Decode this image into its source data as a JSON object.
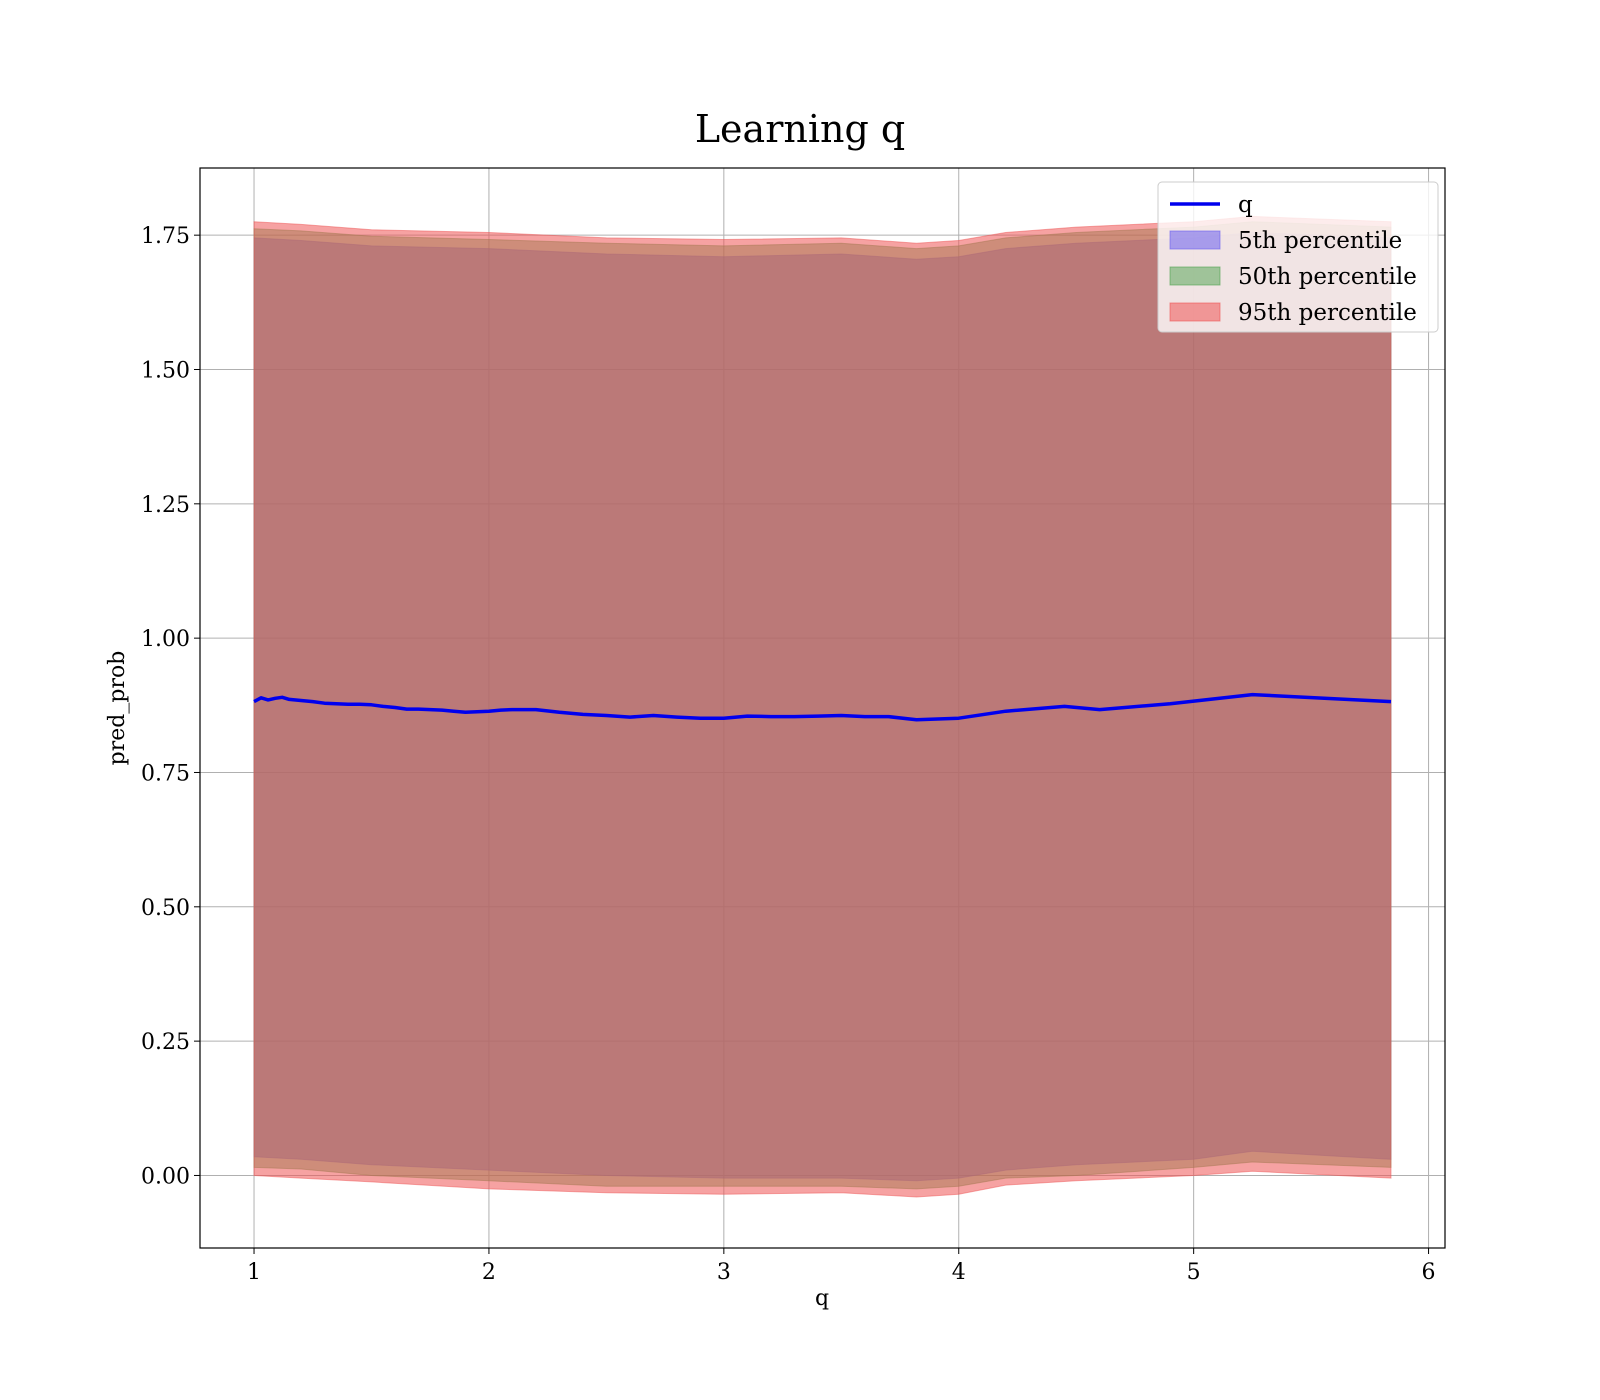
{
  "chart_data": {
    "type": "area",
    "title": "Learning q",
    "xlabel": "q",
    "ylabel": "pred_prob",
    "xlim": [
      0.77,
      6.07
    ],
    "ylim": [
      -0.135,
      1.875
    ],
    "xticks": [
      "1",
      "2",
      "3",
      "4",
      "5",
      "6"
    ],
    "yticks": [
      "0.00",
      "0.25",
      "0.50",
      "0.75",
      "1.00",
      "1.25",
      "1.50",
      "1.75"
    ],
    "grid": true,
    "legend_position": "top-right",
    "line": {
      "name": "q",
      "color": "#0000ee",
      "x": [
        1.0,
        1.03,
        1.06,
        1.09,
        1.12,
        1.15,
        1.2,
        1.25,
        1.3,
        1.35,
        1.4,
        1.45,
        1.5,
        1.55,
        1.6,
        1.65,
        1.7,
        1.75,
        1.8,
        1.85,
        1.9,
        1.95,
        2.0,
        2.05,
        2.1,
        2.15,
        2.2,
        2.3,
        2.4,
        2.5,
        2.6,
        2.7,
        2.8,
        2.9,
        3.0,
        3.1,
        3.2,
        3.3,
        3.4,
        3.5,
        3.6,
        3.7,
        3.82,
        4.0,
        4.2,
        4.45,
        4.6,
        4.9,
        5.25,
        5.84
      ],
      "y": [
        0.882,
        0.889,
        0.885,
        0.888,
        0.89,
        0.886,
        0.884,
        0.882,
        0.879,
        0.878,
        0.877,
        0.877,
        0.876,
        0.873,
        0.871,
        0.868,
        0.868,
        0.867,
        0.866,
        0.864,
        0.862,
        0.863,
        0.864,
        0.866,
        0.867,
        0.867,
        0.867,
        0.862,
        0.858,
        0.856,
        0.853,
        0.856,
        0.853,
        0.851,
        0.851,
        0.855,
        0.854,
        0.854,
        0.855,
        0.856,
        0.854,
        0.854,
        0.848,
        0.851,
        0.864,
        0.873,
        0.867,
        0.878,
        0.895,
        0.882
      ]
    },
    "bands": [
      {
        "name": "5th percentile",
        "color": "#6a5ff0",
        "opacity": 0.55,
        "x": [
          1.0,
          1.2,
          1.5,
          2.0,
          2.5,
          3.0,
          3.5,
          3.82,
          4.0,
          4.2,
          4.5,
          5.0,
          5.25,
          5.84
        ],
        "lower": [
          0.035,
          0.03,
          0.02,
          0.01,
          0.0,
          -0.005,
          -0.005,
          -0.01,
          -0.005,
          0.01,
          0.02,
          0.03,
          0.045,
          0.03
        ],
        "upper": [
          1.745,
          1.74,
          1.73,
          1.725,
          1.715,
          1.71,
          1.715,
          1.705,
          1.71,
          1.725,
          1.735,
          1.745,
          1.755,
          1.745
        ]
      },
      {
        "name": "50th percentile",
        "color": "#4ea24e",
        "opacity": 0.5,
        "x": [
          1.0,
          1.2,
          1.5,
          2.0,
          2.5,
          3.0,
          3.5,
          3.82,
          4.0,
          4.2,
          4.5,
          5.0,
          5.25,
          5.84
        ],
        "lower": [
          0.015,
          0.012,
          0.0,
          -0.01,
          -0.02,
          -0.02,
          -0.02,
          -0.025,
          -0.02,
          -0.005,
          0.0,
          0.015,
          0.025,
          0.015
        ],
        "upper": [
          1.762,
          1.758,
          1.748,
          1.742,
          1.735,
          1.73,
          1.735,
          1.725,
          1.73,
          1.745,
          1.755,
          1.765,
          1.775,
          1.765
        ]
      },
      {
        "name": "95th percentile",
        "color": "#ee5555",
        "opacity": 0.55,
        "x": [
          1.0,
          1.2,
          1.5,
          2.0,
          2.5,
          3.0,
          3.5,
          3.82,
          4.0,
          4.2,
          4.5,
          5.0,
          5.25,
          5.84
        ],
        "lower": [
          0.0,
          -0.005,
          -0.012,
          -0.025,
          -0.032,
          -0.035,
          -0.032,
          -0.04,
          -0.035,
          -0.018,
          -0.01,
          0.0,
          0.008,
          -0.005
        ],
        "upper": [
          1.775,
          1.77,
          1.76,
          1.755,
          1.745,
          1.742,
          1.745,
          1.735,
          1.74,
          1.755,
          1.765,
          1.775,
          1.785,
          1.775
        ]
      }
    ]
  }
}
